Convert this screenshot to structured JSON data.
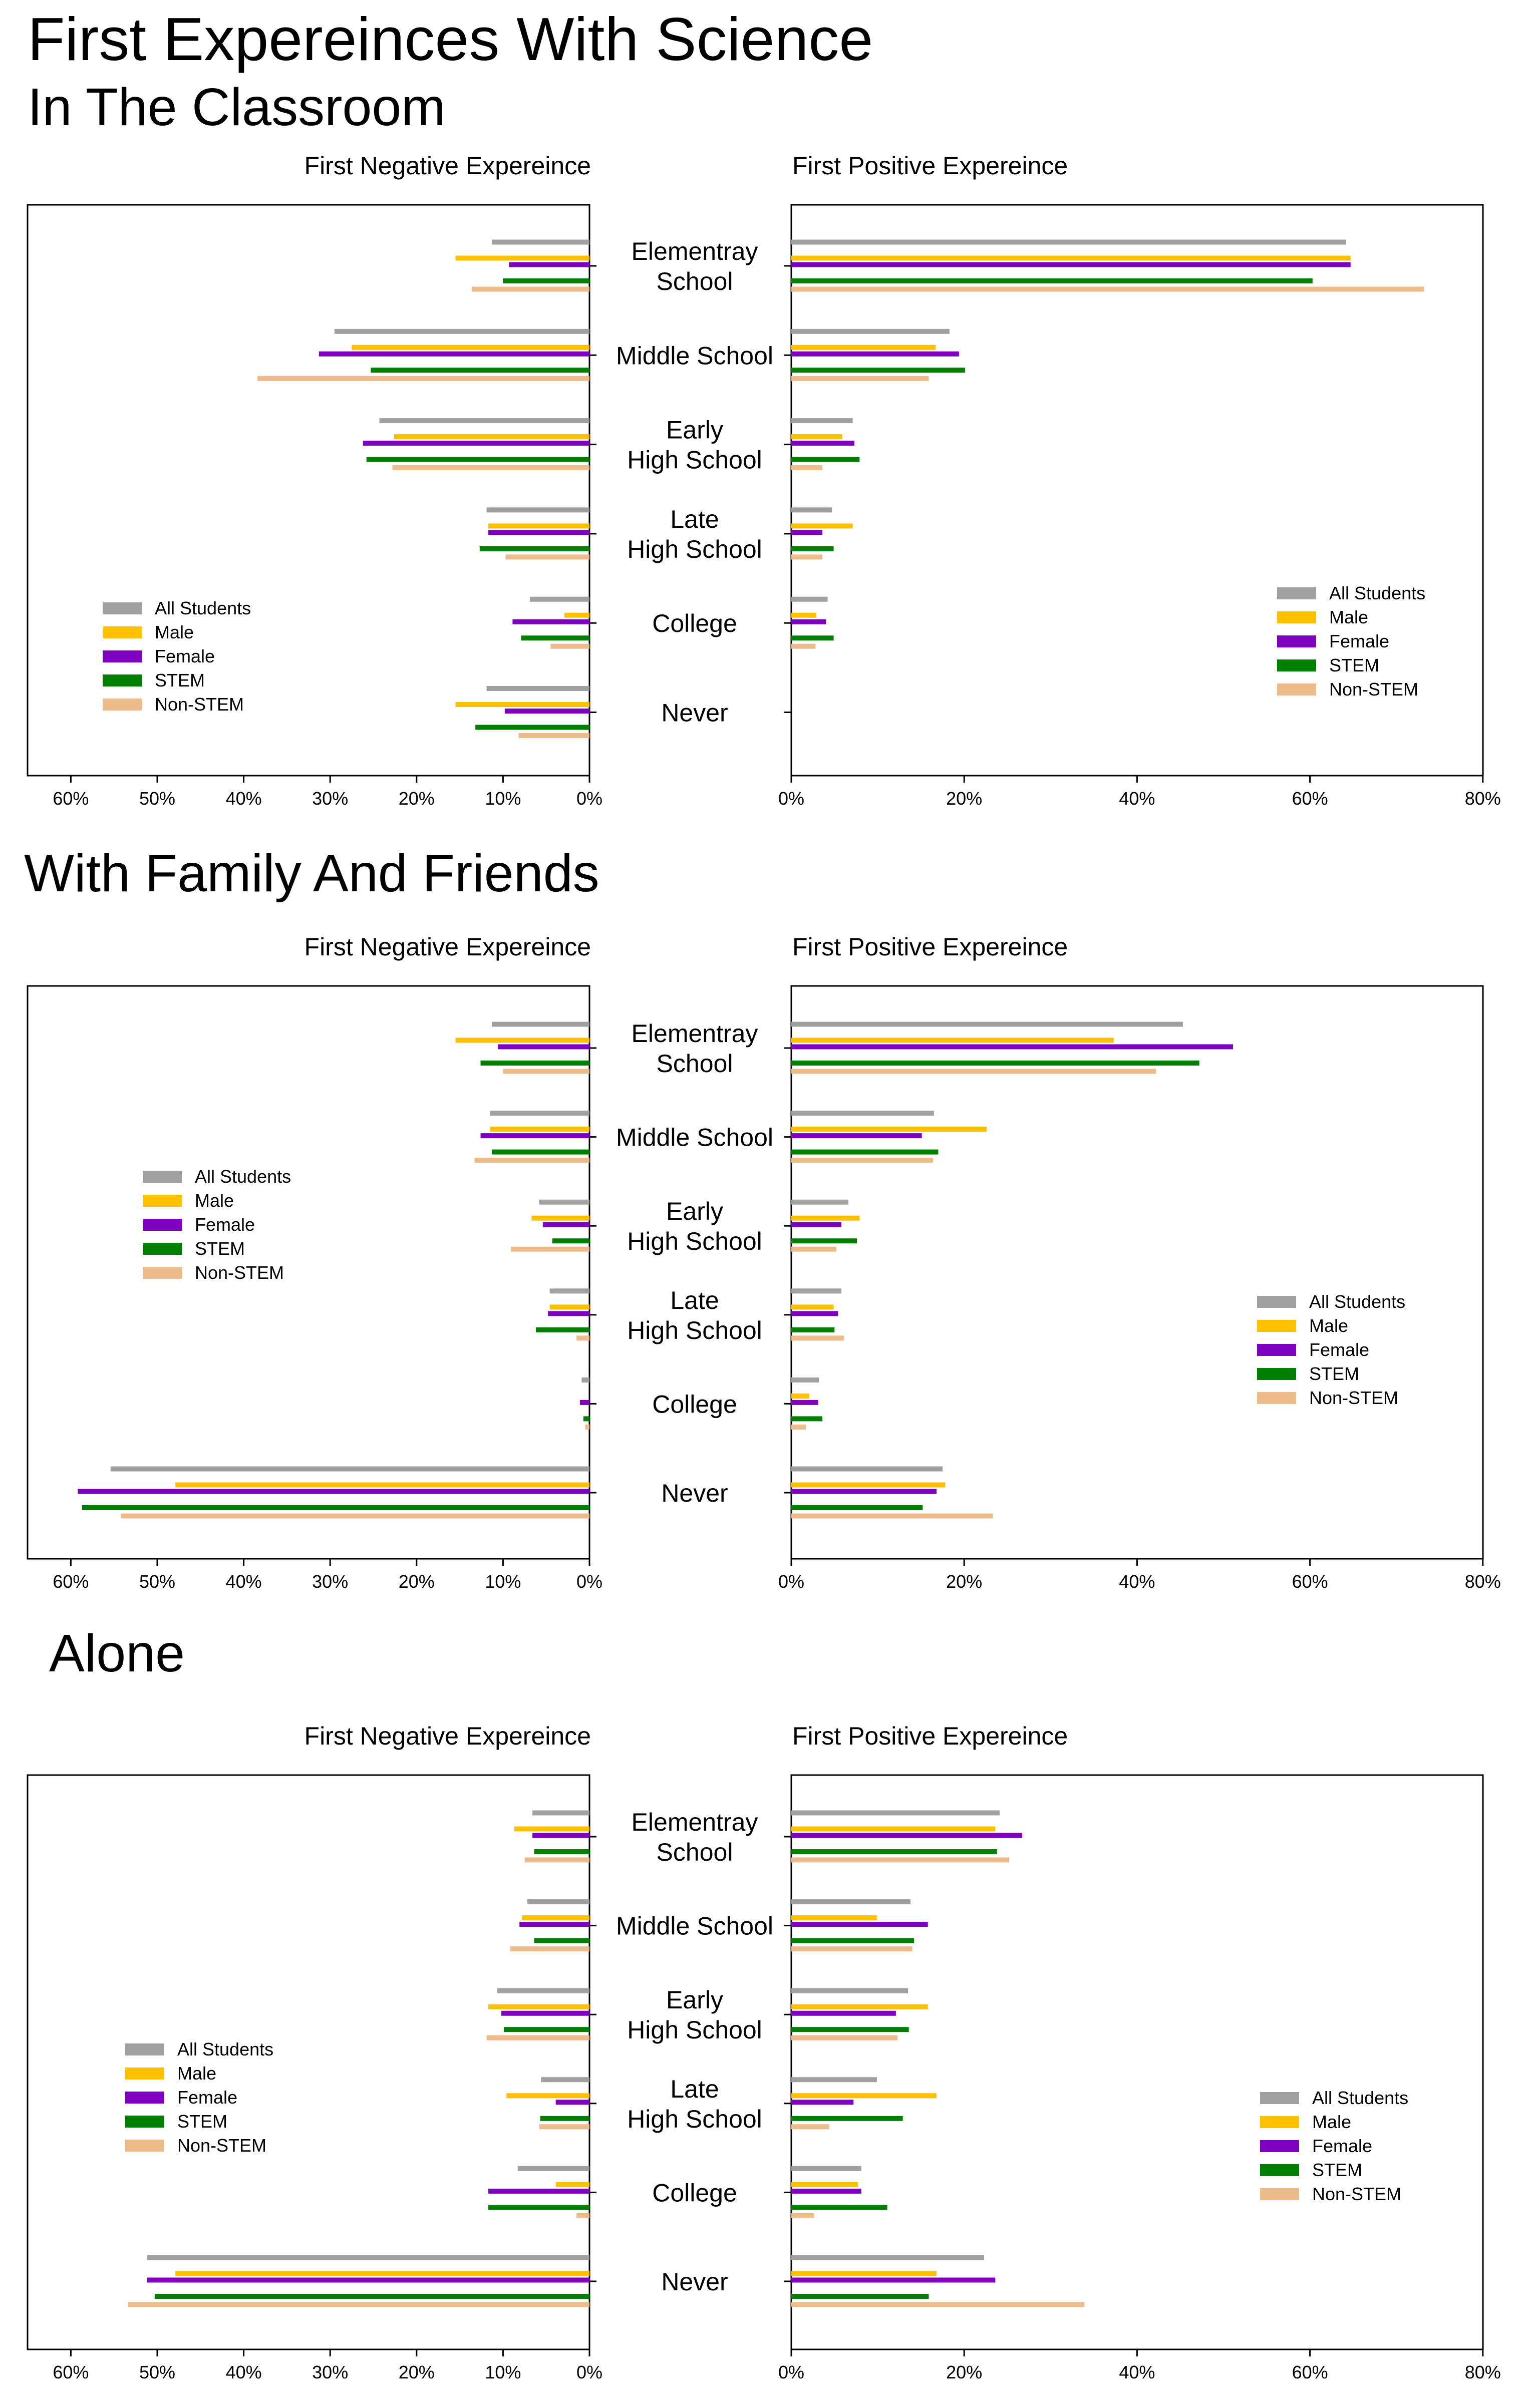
{
  "main_title_line1": "First Expereinces With Science",
  "section_titles": [
    "In The Classroom",
    "With Family And Friends",
    "Alone"
  ],
  "negative_panel_title": "First Negative Expereince",
  "positive_panel_title": "First Positive Expereince",
  "categories": [
    [
      "Elementray",
      "School"
    ],
    [
      "Middle School"
    ],
    [
      "Early",
      "High School"
    ],
    [
      "Late",
      "High School"
    ],
    [
      "College"
    ],
    [
      "Never"
    ]
  ],
  "series_names": [
    "All Students",
    "Male",
    "Female",
    "STEM",
    "Non-STEM"
  ],
  "colors": [
    "#A0A0A0",
    "#FFC000",
    "#7F00BF",
    "#008000",
    "#EDBC8A"
  ],
  "negative_ticks": [
    "60%",
    "50%",
    "40%",
    "30%",
    "20%",
    "10%",
    "0%"
  ],
  "positive_ticks": [
    "0%",
    "20%",
    "40%",
    "60%",
    "80%"
  ],
  "chart_data": [
    {
      "type": "bar",
      "title": "In The Classroom",
      "negative": {
        "title": "First Negative Expereince",
        "xlim": [
          65,
          0
        ],
        "series": [
          {
            "name": "All Students",
            "values": [
              11.3,
              29.5,
              24.3,
              11.9,
              6.9,
              11.9
            ]
          },
          {
            "name": "Male",
            "values": [
              15.5,
              27.5,
              22.6,
              11.7,
              2.9,
              15.5
            ]
          },
          {
            "name": "Female",
            "values": [
              9.3,
              31.3,
              26.2,
              11.7,
              8.9,
              9.8
            ]
          },
          {
            "name": "STEM",
            "values": [
              10.0,
              25.3,
              25.8,
              12.7,
              7.9,
              13.2
            ]
          },
          {
            "name": "Non-STEM",
            "values": [
              13.6,
              38.4,
              22.8,
              9.7,
              4.5,
              8.2
            ]
          }
        ],
        "legend": "bottom-left"
      },
      "positive": {
        "title": "First Positive Expereince",
        "xlim": [
          0,
          80
        ],
        "series": [
          {
            "name": "All Students",
            "values": [
              64.2,
              18.3,
              7.1,
              4.7,
              4.2,
              0
            ]
          },
          {
            "name": "Male",
            "values": [
              64.7,
              16.7,
              5.9,
              7.1,
              2.9,
              0
            ]
          },
          {
            "name": "Female",
            "values": [
              64.7,
              19.4,
              7.3,
              3.6,
              4.0,
              0
            ]
          },
          {
            "name": "STEM",
            "values": [
              60.3,
              20.1,
              7.9,
              4.9,
              4.9,
              0
            ]
          },
          {
            "name": "Non-STEM",
            "values": [
              73.2,
              15.9,
              3.6,
              3.6,
              2.8,
              0
            ]
          }
        ],
        "legend": "right"
      }
    },
    {
      "type": "bar",
      "title": "With Family And Friends",
      "negative": {
        "title": "First Negative Expereince",
        "xlim": [
          65,
          0
        ],
        "series": [
          {
            "name": "All Students",
            "values": [
              11.3,
              11.5,
              5.8,
              4.6,
              0.9,
              55.4
            ]
          },
          {
            "name": "Male",
            "values": [
              15.5,
              11.5,
              6.7,
              4.6,
              0,
              47.9
            ]
          },
          {
            "name": "Female",
            "values": [
              10.6,
              12.6,
              5.4,
              4.8,
              1.1,
              59.2
            ]
          },
          {
            "name": "STEM",
            "values": [
              12.6,
              11.3,
              4.3,
              6.2,
              0.7,
              58.7
            ]
          },
          {
            "name": "Non-STEM",
            "values": [
              10.0,
              13.3,
              9.1,
              1.5,
              0.5,
              54.2
            ]
          }
        ],
        "legend": "upper-left"
      },
      "positive": {
        "title": "First Positive Expereince",
        "xlim": [
          0,
          80
        ],
        "series": [
          {
            "name": "All Students",
            "values": [
              45.3,
              16.5,
              6.6,
              5.8,
              3.2,
              17.5
            ]
          },
          {
            "name": "Male",
            "values": [
              37.3,
              22.6,
              7.9,
              4.9,
              2.1,
              17.8
            ]
          },
          {
            "name": "Female",
            "values": [
              51.1,
              15.1,
              5.8,
              5.4,
              3.1,
              16.8
            ]
          },
          {
            "name": "STEM",
            "values": [
              47.2,
              17.0,
              7.6,
              5.0,
              3.6,
              15.2
            ]
          },
          {
            "name": "Non-STEM",
            "values": [
              42.2,
              16.4,
              5.2,
              6.1,
              1.7,
              23.3
            ]
          }
        ],
        "legend": "right"
      }
    },
    {
      "type": "bar",
      "title": "Alone",
      "negative": {
        "title": "First Negative Expereince",
        "xlim": [
          65,
          0
        ],
        "series": [
          {
            "name": "All Students",
            "values": [
              6.6,
              7.2,
              10.7,
              5.6,
              8.3,
              51.2
            ]
          },
          {
            "name": "Male",
            "values": [
              8.7,
              7.8,
              11.7,
              9.6,
              3.9,
              47.9
            ]
          },
          {
            "name": "Female",
            "values": [
              6.6,
              8.1,
              10.2,
              3.9,
              11.7,
              51.2
            ]
          },
          {
            "name": "STEM",
            "values": [
              6.4,
              6.4,
              9.9,
              5.7,
              11.7,
              50.3
            ]
          },
          {
            "name": "Non-STEM",
            "values": [
              7.5,
              9.2,
              11.9,
              5.8,
              1.5,
              53.4
            ]
          }
        ],
        "legend": "left"
      },
      "positive": {
        "title": "First Positive Expereince",
        "xlim": [
          0,
          80
        ],
        "series": [
          {
            "name": "All Students",
            "values": [
              24.1,
              13.8,
              13.5,
              9.9,
              8.1,
              22.3
            ]
          },
          {
            "name": "Male",
            "values": [
              23.6,
              9.9,
              15.8,
              16.8,
              7.7,
              16.8
            ]
          },
          {
            "name": "Female",
            "values": [
              26.7,
              15.8,
              12.1,
              7.2,
              8.1,
              23.6
            ]
          },
          {
            "name": "STEM",
            "values": [
              23.8,
              14.2,
              13.6,
              12.9,
              11.1,
              15.9
            ]
          },
          {
            "name": "Non-STEM",
            "values": [
              25.2,
              14.0,
              12.3,
              4.4,
              2.6,
              33.9
            ]
          }
        ],
        "legend": "lower-right"
      }
    }
  ]
}
